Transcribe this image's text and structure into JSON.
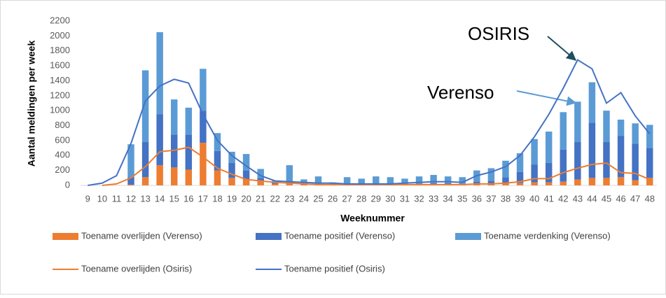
{
  "chart_data": {
    "type": "bar",
    "stacked": true,
    "y_label": "Aantal meldingen per week",
    "x_label": "Weeknummer",
    "annotations": [
      "OSIRIS",
      "Verenso"
    ],
    "categories": [
      "9",
      "10",
      "11",
      "12",
      "13",
      "14",
      "15",
      "16",
      "17",
      "18",
      "19",
      "20",
      "21",
      "22",
      "23",
      "24",
      "25",
      "26",
      "27",
      "28",
      "29",
      "30",
      "31",
      "32",
      "33",
      "34",
      "35",
      "36",
      "37",
      "38",
      "39",
      "40",
      "41",
      "42",
      "43",
      "44",
      "45",
      "46",
      "47",
      "48"
    ],
    "series": [
      {
        "name": "Toename overlijden (Verenso)",
        "type": "bar",
        "color": "#ed7d31",
        "values": [
          null,
          null,
          null,
          10,
          110,
          270,
          240,
          210,
          570,
          200,
          100,
          80,
          50,
          20,
          20,
          10,
          5,
          5,
          5,
          5,
          5,
          5,
          5,
          5,
          5,
          5,
          5,
          10,
          10,
          20,
          30,
          40,
          40,
          50,
          80,
          100,
          100,
          110,
          70,
          100
        ]
      },
      {
        "name": "Toename positief (Verenso)",
        "type": "bar",
        "color": "#4472c4",
        "values": [
          null,
          null,
          null,
          100,
          470,
          680,
          440,
          470,
          430,
          260,
          200,
          120,
          50,
          20,
          40,
          20,
          15,
          10,
          10,
          10,
          15,
          15,
          15,
          20,
          25,
          25,
          20,
          40,
          50,
          90,
          150,
          240,
          260,
          430,
          500,
          740,
          480,
          550,
          490,
          400
        ]
      },
      {
        "name": "Toename verdenking (Verenso)",
        "type": "bar",
        "color": "#5b9bd5",
        "values": [
          null,
          null,
          null,
          440,
          960,
          1100,
          470,
          360,
          560,
          240,
          150,
          220,
          120,
          20,
          210,
          50,
          100,
          25,
          95,
          75,
          100,
          90,
          70,
          95,
          110,
          90,
          85,
          150,
          170,
          220,
          250,
          340,
          420,
          500,
          540,
          540,
          420,
          220,
          270,
          310
        ]
      },
      {
        "name": "Toename overlijden (Osiris)",
        "type": "line",
        "color": "#ed7d31",
        "values": [
          null,
          0,
          20,
          100,
          250,
          450,
          470,
          510,
          380,
          230,
          150,
          80,
          60,
          40,
          30,
          20,
          10,
          10,
          10,
          10,
          10,
          10,
          10,
          10,
          10,
          10,
          10,
          20,
          20,
          30,
          50,
          90,
          90,
          170,
          230,
          280,
          300,
          170,
          160,
          80
        ]
      },
      {
        "name": "Toename positief (Osiris)",
        "type": "line",
        "color": "#4472c4",
        "values": [
          0,
          30,
          130,
          560,
          1130,
          1330,
          1420,
          1370,
          950,
          600,
          400,
          260,
          130,
          60,
          50,
          40,
          30,
          30,
          20,
          20,
          20,
          20,
          30,
          40,
          50,
          50,
          40,
          130,
          180,
          250,
          400,
          650,
          950,
          1300,
          1680,
          1560,
          1100,
          1240,
          930,
          690
        ]
      }
    ],
    "ylim": [
      0,
      2200
    ],
    "yticks": [
      0,
      200,
      400,
      600,
      800,
      1000,
      1200,
      1400,
      1600,
      1800,
      2000,
      2200
    ],
    "grid": false
  }
}
